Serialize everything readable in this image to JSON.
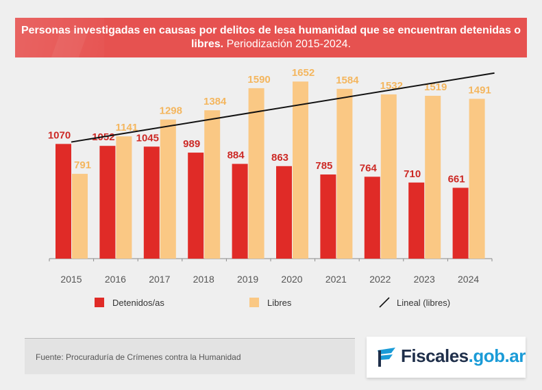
{
  "header": {
    "title_bold": "Personas investigadas en causas por delitos de lesa humanidad que se encuentran detenidas o libres.",
    "title_suffix": "Periodización 2015-2024."
  },
  "colors": {
    "detenidos": "#e02b27",
    "libres": "#fac884",
    "trend": "#111111",
    "banner": "#e65250",
    "detenidos_label": "#cc2925",
    "libres_label": "#f4b65e",
    "axis_text": "#555555"
  },
  "chart_data": {
    "type": "bar",
    "categories": [
      "2015",
      "2016",
      "2017",
      "2018",
      "2019",
      "2020",
      "2021",
      "2022",
      "2023",
      "2024"
    ],
    "series": [
      {
        "name": "Detenidos/as",
        "values": [
          1070,
          1052,
          1045,
          989,
          884,
          863,
          785,
          764,
          710,
          661
        ]
      },
      {
        "name": "Libres",
        "values": [
          791,
          1141,
          1298,
          1384,
          1590,
          1652,
          1584,
          1532,
          1519,
          1491
        ]
      }
    ],
    "trendline": {
      "name": "Lineal (libres)",
      "type": "linear",
      "series": "Libres"
    },
    "ylim": [
      0,
      1800
    ],
    "grid": false,
    "legend_position": "bottom"
  },
  "legend": {
    "detenidos": "Detenidos/as",
    "libres": "Libres",
    "lineal": "Lineal (libres)"
  },
  "source": "Fuente: Procuraduría de Crímenes contra la Humanidad",
  "logo": {
    "main": "Fiscales",
    "domain": ".gob.ar",
    "icon": "fiscales-flag-icon"
  }
}
